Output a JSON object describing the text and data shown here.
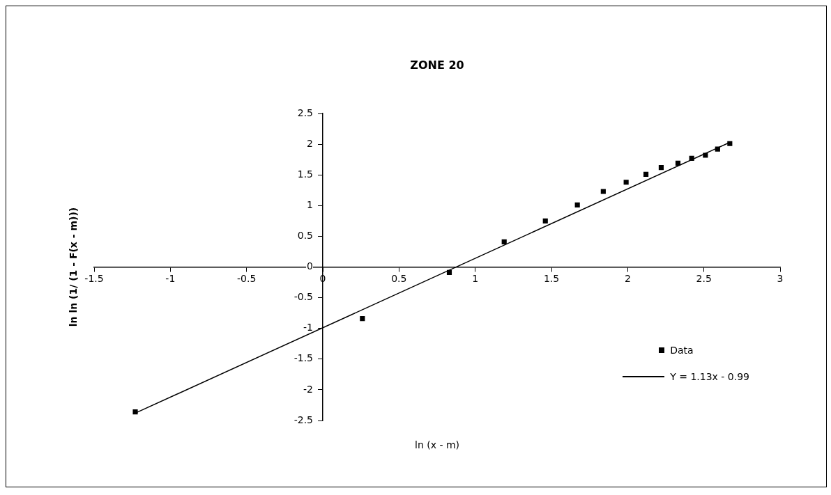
{
  "chart_data": {
    "type": "scatter",
    "title": "ZONE 20",
    "xlabel": "ln (x - m)",
    "ylabel": "ln ln (1/ (1 - F(x - m)))",
    "xlim": [
      -1.5,
      3
    ],
    "xticks": [
      -1.5,
      -1,
      -0.5,
      0,
      0.5,
      1,
      1.5,
      2,
      2.5,
      3
    ],
    "ylim": [
      -2.5,
      2.5
    ],
    "yticks": [
      -2.5,
      -2,
      -1.5,
      -1,
      -0.5,
      0,
      0.5,
      1,
      1.5,
      2,
      2.5
    ],
    "grid": false,
    "legend": "bottom right",
    "marker": "square",
    "series": [
      {
        "name": "Data",
        "type": "scatter",
        "color": "#000000",
        "x": [
          -1.23,
          0.26,
          0.83,
          1.19,
          1.46,
          1.67,
          1.84,
          1.99,
          2.12,
          2.22,
          2.33,
          2.42,
          2.51,
          2.59,
          2.67
        ],
        "values": [
          -2.36,
          -0.84,
          -0.09,
          0.41,
          0.75,
          1.01,
          1.23,
          1.38,
          1.51,
          1.62,
          1.69,
          1.77,
          1.82,
          1.92,
          2.01
        ]
      },
      {
        "name": "Y = 1.13x - 0.99",
        "type": "line",
        "color": "#000000",
        "marker": "none",
        "line_style": "solid",
        "x": [
          -1.23,
          2.67
        ],
        "values": [
          -2.38,
          2.03
        ]
      }
    ]
  }
}
